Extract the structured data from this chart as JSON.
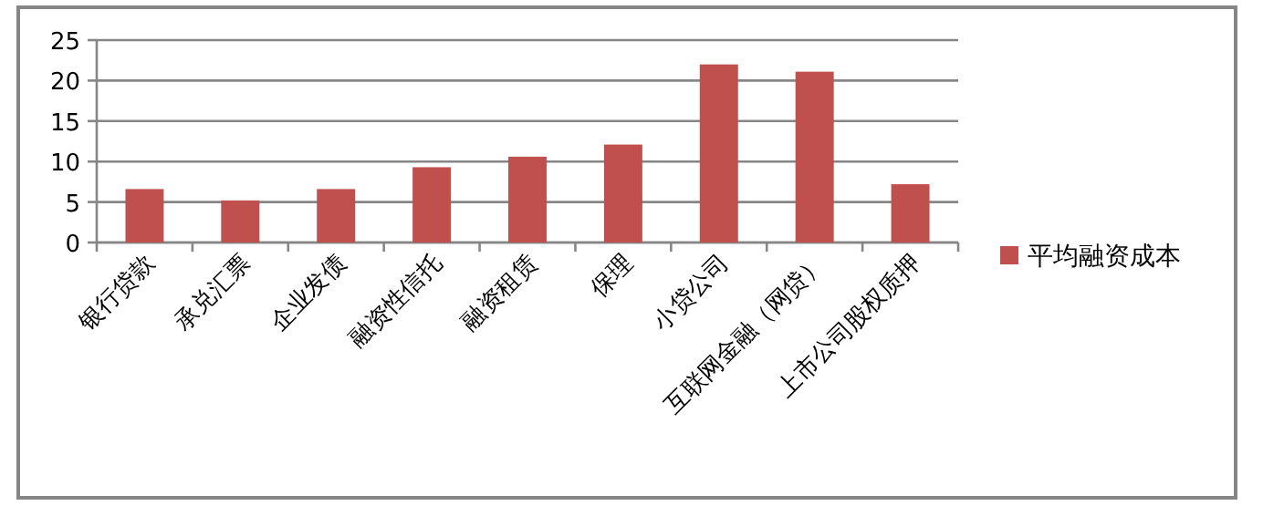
{
  "chart_data": {
    "type": "bar",
    "categories": [
      "银行贷款",
      "承兑汇票",
      "企业发债",
      "融资性信托",
      "融资租赁",
      "保理",
      "小贷公司",
      "互联网金融（网贷）",
      "上市公司股权质押"
    ],
    "series": [
      {
        "name": "平均融资成本",
        "color": "#c0504d",
        "values": [
          6.6,
          5.2,
          6.6,
          9.3,
          10.6,
          12.1,
          22.0,
          21.1,
          7.2
        ]
      }
    ],
    "ylim": [
      0,
      25
    ],
    "yticks": [
      0,
      5,
      10,
      15,
      20,
      25
    ],
    "grid": "y",
    "legend": "right"
  }
}
